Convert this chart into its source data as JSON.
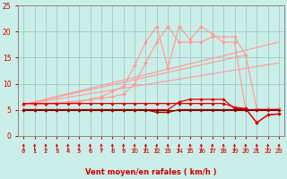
{
  "xlabel": "Vent moyen/en rafales ( km/h )",
  "xlim": [
    -0.5,
    23.5
  ],
  "ylim": [
    0,
    25
  ],
  "xticks": [
    0,
    1,
    2,
    3,
    4,
    5,
    6,
    7,
    8,
    9,
    10,
    11,
    12,
    13,
    14,
    15,
    16,
    17,
    18,
    19,
    20,
    21,
    22,
    23
  ],
  "yticks": [
    0,
    5,
    10,
    15,
    20,
    25
  ],
  "bg_color": "#cceee8",
  "grid_color": "#99cccc",
  "lines": [
    {
      "x": [
        0,
        1,
        2,
        3,
        4,
        5,
        6,
        7,
        8,
        9,
        10,
        11,
        12,
        13,
        14,
        15,
        16,
        17,
        18,
        19,
        20,
        21,
        22,
        23
      ],
      "y": [
        6.0,
        6.0,
        6.2,
        6.3,
        6.5,
        6.7,
        7.0,
        7.5,
        8.5,
        9.5,
        13.5,
        18,
        21,
        13,
        21,
        18.5,
        21,
        19.5,
        18,
        18,
        5,
        5,
        5.2,
        5.2
      ],
      "color": "#ff9999",
      "lw": 0.8,
      "marker": "D",
      "ms": 2.0,
      "zorder": 2
    },
    {
      "x": [
        0,
        1,
        2,
        3,
        4,
        5,
        6,
        7,
        8,
        9,
        10,
        11,
        12,
        13,
        14,
        15,
        16,
        17,
        18,
        19,
        20,
        21,
        22,
        23
      ],
      "y": [
        6.0,
        6.0,
        6.0,
        6.2,
        6.3,
        6.5,
        7.0,
        7.2,
        7.5,
        8.0,
        10,
        14,
        18,
        21,
        18,
        18,
        18,
        19,
        19,
        19,
        15.5,
        5.2,
        5.2,
        5.2
      ],
      "color": "#ff9999",
      "lw": 0.8,
      "marker": "D",
      "ms": 2.0,
      "zorder": 2
    },
    {
      "x": [
        0,
        23
      ],
      "y": [
        6.0,
        18.0
      ],
      "color": "#ff9999",
      "lw": 0.8,
      "marker": null,
      "ms": 0,
      "zorder": 2
    },
    {
      "x": [
        0,
        23
      ],
      "y": [
        6.0,
        14.0
      ],
      "color": "#ff9999",
      "lw": 0.8,
      "marker": null,
      "ms": 0,
      "zorder": 2
    },
    {
      "x": [
        0,
        20
      ],
      "y": [
        6.0,
        15.5
      ],
      "color": "#ff9999",
      "lw": 0.8,
      "marker": null,
      "ms": 0,
      "zorder": 2
    },
    {
      "x": [
        0,
        1,
        2,
        3,
        4,
        5,
        6,
        7,
        8,
        9,
        10,
        11,
        12,
        13,
        14,
        15,
        16,
        17,
        18,
        19,
        20,
        21,
        22,
        23
      ],
      "y": [
        6.2,
        6.2,
        6.2,
        6.2,
        6.2,
        6.2,
        6.2,
        6.2,
        6.2,
        6.2,
        6.2,
        6.2,
        6.2,
        6.2,
        6.2,
        6.2,
        6.2,
        6.2,
        6.2,
        5.5,
        5.2,
        2.5,
        4.0,
        4.2
      ],
      "color": "#dd0000",
      "lw": 0.9,
      "marker": "D",
      "ms": 1.8,
      "zorder": 3
    },
    {
      "x": [
        0,
        1,
        2,
        3,
        4,
        5,
        6,
        7,
        8,
        9,
        10,
        11,
        12,
        13,
        14,
        15,
        16,
        17,
        18,
        19,
        20,
        21,
        22,
        23
      ],
      "y": [
        5.0,
        5.0,
        5.0,
        5.0,
        5.0,
        5.0,
        5.0,
        5.0,
        5.0,
        5.0,
        5.0,
        5.0,
        5.0,
        5.0,
        6.5,
        7.0,
        7.0,
        7.0,
        7.0,
        5.2,
        5.2,
        2.5,
        4.0,
        4.2
      ],
      "color": "#dd0000",
      "lw": 0.9,
      "marker": "D",
      "ms": 1.8,
      "zorder": 3
    },
    {
      "x": [
        0,
        1,
        2,
        3,
        4,
        5,
        6,
        7,
        8,
        9,
        10,
        11,
        12,
        13,
        14,
        15,
        16,
        17,
        18,
        19,
        20,
        21,
        22,
        23
      ],
      "y": [
        5.0,
        5.0,
        5.0,
        5.0,
        5.0,
        5.0,
        5.0,
        5.0,
        5.0,
        5.0,
        5.0,
        5.0,
        4.5,
        4.5,
        5.0,
        5.0,
        5.0,
        5.0,
        5.0,
        5.0,
        5.0,
        5.0,
        5.0,
        5.0
      ],
      "color": "#990000",
      "lw": 1.0,
      "marker": "D",
      "ms": 1.8,
      "zorder": 4
    },
    {
      "x": [
        0,
        23
      ],
      "y": [
        5.0,
        5.0
      ],
      "color": "#770000",
      "lw": 0.8,
      "marker": null,
      "ms": 0,
      "zorder": 4
    }
  ],
  "arrow_color": "#cc0000",
  "axis_color": "#888888",
  "tick_color": "#cc0000",
  "label_color": "#cc0000",
  "tick_label_color": "#cc0000"
}
